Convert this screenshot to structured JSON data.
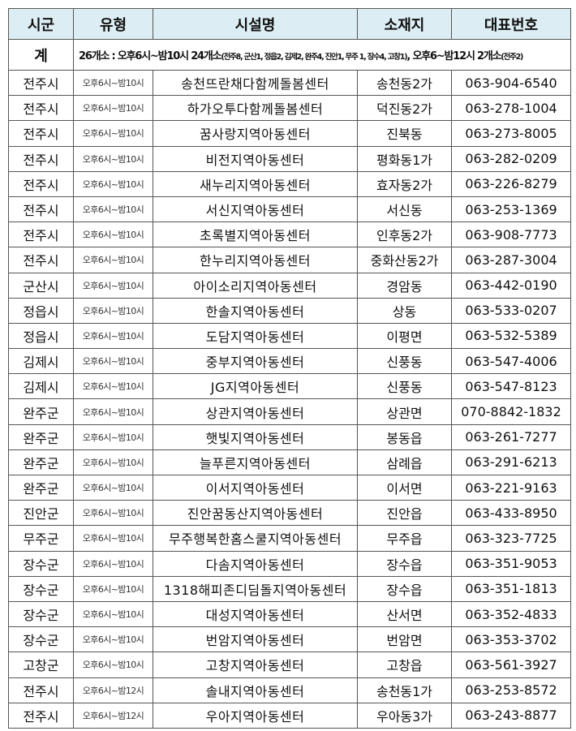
{
  "headers": [
    "시군",
    "유형",
    "시설명",
    "소재지",
    "대표번호"
  ],
  "summary": {
    "label": "계",
    "main": "26개소 : 오후6시~밤10시 24개소",
    "detail1": "(전주8, 군산1, 정읍2, 김제2, 완주4, 진안1, 무주 1, 장수4, 고창1)",
    "mid": ", 오후6~밤12시 2개소",
    "detail2": "(전주2)"
  },
  "rows": [
    [
      "전주시",
      "오후6시~밤10시",
      "송천뜨란채다함께돌봄센터",
      "송천동2가",
      "063-904-6540"
    ],
    [
      "전주시",
      "오후6시~밤10시",
      "하가오투다함께돌봄센터",
      "덕진동2가",
      "063-278-1004"
    ],
    [
      "전주시",
      "오후6시~밤10시",
      "꿈사랑지역아동센터",
      "진북동",
      "063-273-8005"
    ],
    [
      "전주시",
      "오후6시~밤10시",
      "비전지역아동센터",
      "평화동1가",
      "063-282-0209"
    ],
    [
      "전주시",
      "오후6시~밤10시",
      "새누리지역아동센터",
      "효자동2가",
      "063-226-8279"
    ],
    [
      "전주시",
      "오후6시~밤10시",
      "서신지역아동센터",
      "서신동",
      "063-253-1369"
    ],
    [
      "전주시",
      "오후6시~밤10시",
      "초록별지역아동센터",
      "인후동2가",
      "063-908-7773"
    ],
    [
      "전주시",
      "오후6시~밤10시",
      "한누리지역아동센터",
      "중화산동2가",
      "063-287-3004"
    ],
    [
      "군산시",
      "오후6시~밤10시",
      "아이소리지역아동센터",
      "경암동",
      "063-442-0190"
    ],
    [
      "정읍시",
      "오후6시~밤10시",
      "한솔지역아동센터",
      "상동",
      "063-533-0207"
    ],
    [
      "정읍시",
      "오후6시~밤10시",
      "도담지역아동센터",
      "이평면",
      "063-532-5389"
    ],
    [
      "김제시",
      "오후6시~밤10시",
      "중부지역아동센터",
      "신풍동",
      "063-547-4006"
    ],
    [
      "김제시",
      "오후6시~밤10시",
      "JG지역아동센터",
      "신풍동",
      "063-547-8123"
    ],
    [
      "완주군",
      "오후6시~밤10시",
      "상관지역아동센터",
      "상관면",
      "070-8842-1832"
    ],
    [
      "완주군",
      "오후6시~밤10시",
      "햇빛지역아동센터",
      "봉동읍",
      "063-261-7277"
    ],
    [
      "완주군",
      "오후6시~밤10시",
      "늘푸른지역아동센터",
      "삼례읍",
      "063-291-6213"
    ],
    [
      "완주군",
      "오후6시~밤10시",
      "이서지역아동센터",
      "이서면",
      "063-221-9163"
    ],
    [
      "진안군",
      "오후6시~밤10시",
      "진안꿈동산지역아동센터",
      "진안읍",
      "063-433-8950"
    ],
    [
      "무주군",
      "오후6시~밤10시",
      "무주행복한홈스쿨지역아동센터",
      "무주읍",
      "063-323-7725"
    ],
    [
      "장수군",
      "오후6시~밤10시",
      "다솜지역아동센터",
      "장수읍",
      "063-351-9053"
    ],
    [
      "장수군",
      "오후6시~밤10시",
      "1318해피존디딤돌지역아동센터",
      "장수읍",
      "063-351-1813"
    ],
    [
      "장수군",
      "오후6시~밤10시",
      "대성지역아동센터",
      "산서면",
      "063-352-4833"
    ],
    [
      "장수군",
      "오후6시~밤10시",
      "번암지역아동센터",
      "번암면",
      "063-353-3702"
    ],
    [
      "고창군",
      "오후6시~밤10시",
      "고창지역아동센터",
      "고창읍",
      "063-561-3927"
    ],
    [
      "전주시",
      "오후6시~밤12시",
      "솔내지역아동센터",
      "송천동1가",
      "063-253-8572"
    ],
    [
      "전주시",
      "오후6시~밤12시",
      "우아지역아동센터",
      "우아동3가",
      "063-243-8877"
    ]
  ]
}
